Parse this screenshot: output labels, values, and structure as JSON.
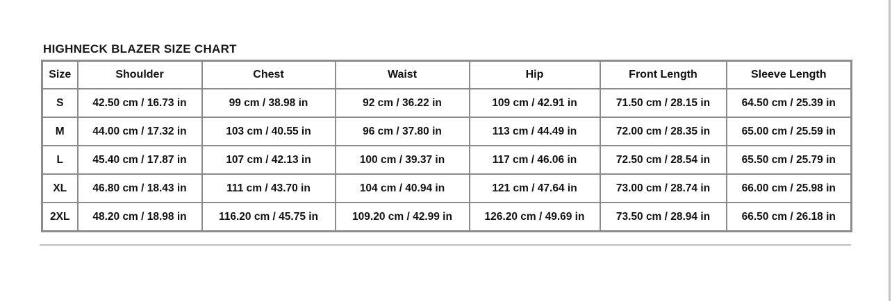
{
  "chart_data": {
    "type": "table",
    "title": "HIGHNECK BLAZER SIZE CHART",
    "columns": [
      "Size",
      "Shoulder",
      "Chest",
      "Waist",
      "Hip",
      "Front Length",
      "Sleeve Length"
    ],
    "rows": [
      [
        "S",
        "42.50 cm / 16.73 in",
        "99 cm / 38.98 in",
        "92 cm / 36.22 in",
        "109 cm / 42.91 in",
        "71.50 cm / 28.15 in",
        "64.50 cm / 25.39 in"
      ],
      [
        "M",
        "44.00 cm / 17.32 in",
        "103 cm / 40.55 in",
        "96 cm / 37.80 in",
        "113 cm / 44.49 in",
        "72.00 cm / 28.35 in",
        "65.00 cm / 25.59 in"
      ],
      [
        "L",
        "45.40 cm / 17.87 in",
        "107 cm / 42.13 in",
        "100 cm / 39.37 in",
        "117 cm / 46.06 in",
        "72.50 cm / 28.54 in",
        "65.50 cm / 25.79 in"
      ],
      [
        "XL",
        "46.80 cm / 18.43 in",
        "111 cm / 43.70 in",
        "104 cm / 40.94 in",
        "121 cm / 47.64 in",
        "73.00 cm / 28.74 in",
        "66.00 cm / 25.98 in"
      ],
      [
        "2XL",
        "48.20 cm / 18.98 in",
        "116.20 cm / 45.75 in",
        "109.20 cm / 42.99 in",
        "126.20 cm / 49.69 in",
        "73.50 cm / 28.94 in",
        "66.50 cm / 26.18 in"
      ]
    ]
  },
  "colors": {
    "table_border": "#8c8c8c",
    "divider": "#c6c6c6",
    "text": "#111111",
    "background": "#ffffff",
    "scrollbar": "#c2c2c2"
  }
}
